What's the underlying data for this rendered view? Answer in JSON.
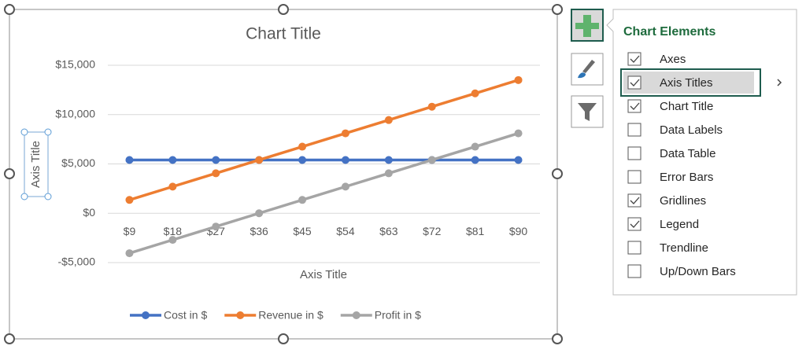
{
  "chart_data": {
    "type": "line",
    "title": "Chart Title",
    "x_axis_title": "Axis Title",
    "y_axis_title": "Axis Title",
    "categories": [
      "$9",
      "$18",
      "$27",
      "$36",
      "$45",
      "$54",
      "$63",
      "$72",
      "$81",
      "$90"
    ],
    "series": [
      {
        "name": "Cost in $",
        "color": "#4472c4",
        "values": [
          5400,
          5400,
          5400,
          5400,
          5400,
          5400,
          5400,
          5400,
          5400,
          5400
        ]
      },
      {
        "name": "Revenue in $",
        "color": "#ed7d31",
        "values": [
          1350,
          2700,
          4050,
          5400,
          6750,
          8100,
          9450,
          10800,
          12150,
          13500
        ]
      },
      {
        "name": "Profit in $",
        "color": "#a5a5a5",
        "values": [
          -4050,
          -2700,
          -1350,
          0,
          1350,
          2700,
          4050,
          5400,
          6750,
          8100
        ]
      }
    ],
    "ylim": [
      -5000,
      15000
    ],
    "yticks": [
      {
        "value": -5000,
        "label": "-$5,000"
      },
      {
        "value": 0,
        "label": "$0"
      },
      {
        "value": 5000,
        "label": "$5,000"
      },
      {
        "value": 10000,
        "label": "$10,000"
      },
      {
        "value": 15000,
        "label": "$15,000"
      }
    ],
    "grid": true,
    "legend": "bottom"
  },
  "panel": {
    "title": "Chart Elements",
    "selected": 1,
    "items": [
      {
        "label": "Axes",
        "checked": true
      },
      {
        "label": "Axis Titles",
        "checked": true
      },
      {
        "label": "Chart Title",
        "checked": true
      },
      {
        "label": "Data Labels",
        "checked": false
      },
      {
        "label": "Data Table",
        "checked": false
      },
      {
        "label": "Error Bars",
        "checked": false
      },
      {
        "label": "Gridlines",
        "checked": true
      },
      {
        "label": "Legend",
        "checked": true
      },
      {
        "label": "Trendline",
        "checked": false
      },
      {
        "label": "Up/Down Bars",
        "checked": false
      }
    ]
  }
}
